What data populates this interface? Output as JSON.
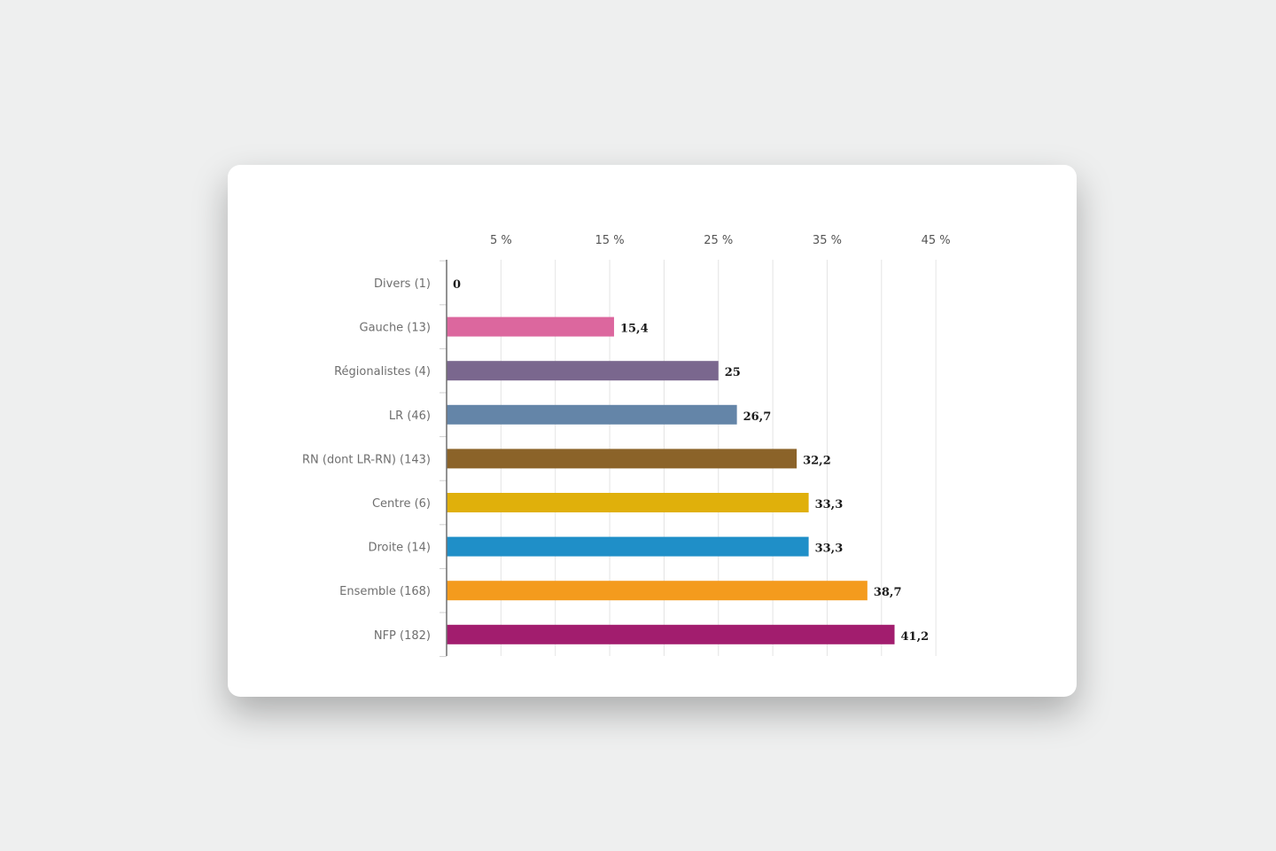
{
  "chart_data": {
    "type": "bar",
    "orientation": "horizontal",
    "categories": [
      "Divers (1)",
      "Gauche (13)",
      "Régionalistes (4)",
      "LR (46)",
      "RN (dont LR-RN) (143)",
      "Centre (6)",
      "Droite (14)",
      "Ensemble (168)",
      "NFP (182)"
    ],
    "values": [
      0,
      15.4,
      25,
      26.7,
      32.2,
      33.3,
      33.3,
      38.7,
      41.2
    ],
    "value_labels": [
      "0",
      "15,4",
      "25",
      "26,7",
      "32,2",
      "33,3",
      "33,3",
      "38,7",
      "41,2"
    ],
    "colors": [
      "#000000",
      "#dc679e",
      "#7a678e",
      "#6485a8",
      "#8b6329",
      "#e0b00b",
      "#1f8fc8",
      "#f49b1d",
      "#a21d6e"
    ],
    "xlim": [
      0,
      45
    ],
    "x_ticks": [
      5,
      10,
      15,
      20,
      25,
      30,
      35,
      40,
      45
    ],
    "x_tick_labels": [
      "5 %",
      "",
      "15 %",
      "",
      "25 %",
      "",
      "35 %",
      "",
      "45 %"
    ],
    "grid": true,
    "title": "",
    "xlabel": "",
    "ylabel": ""
  }
}
